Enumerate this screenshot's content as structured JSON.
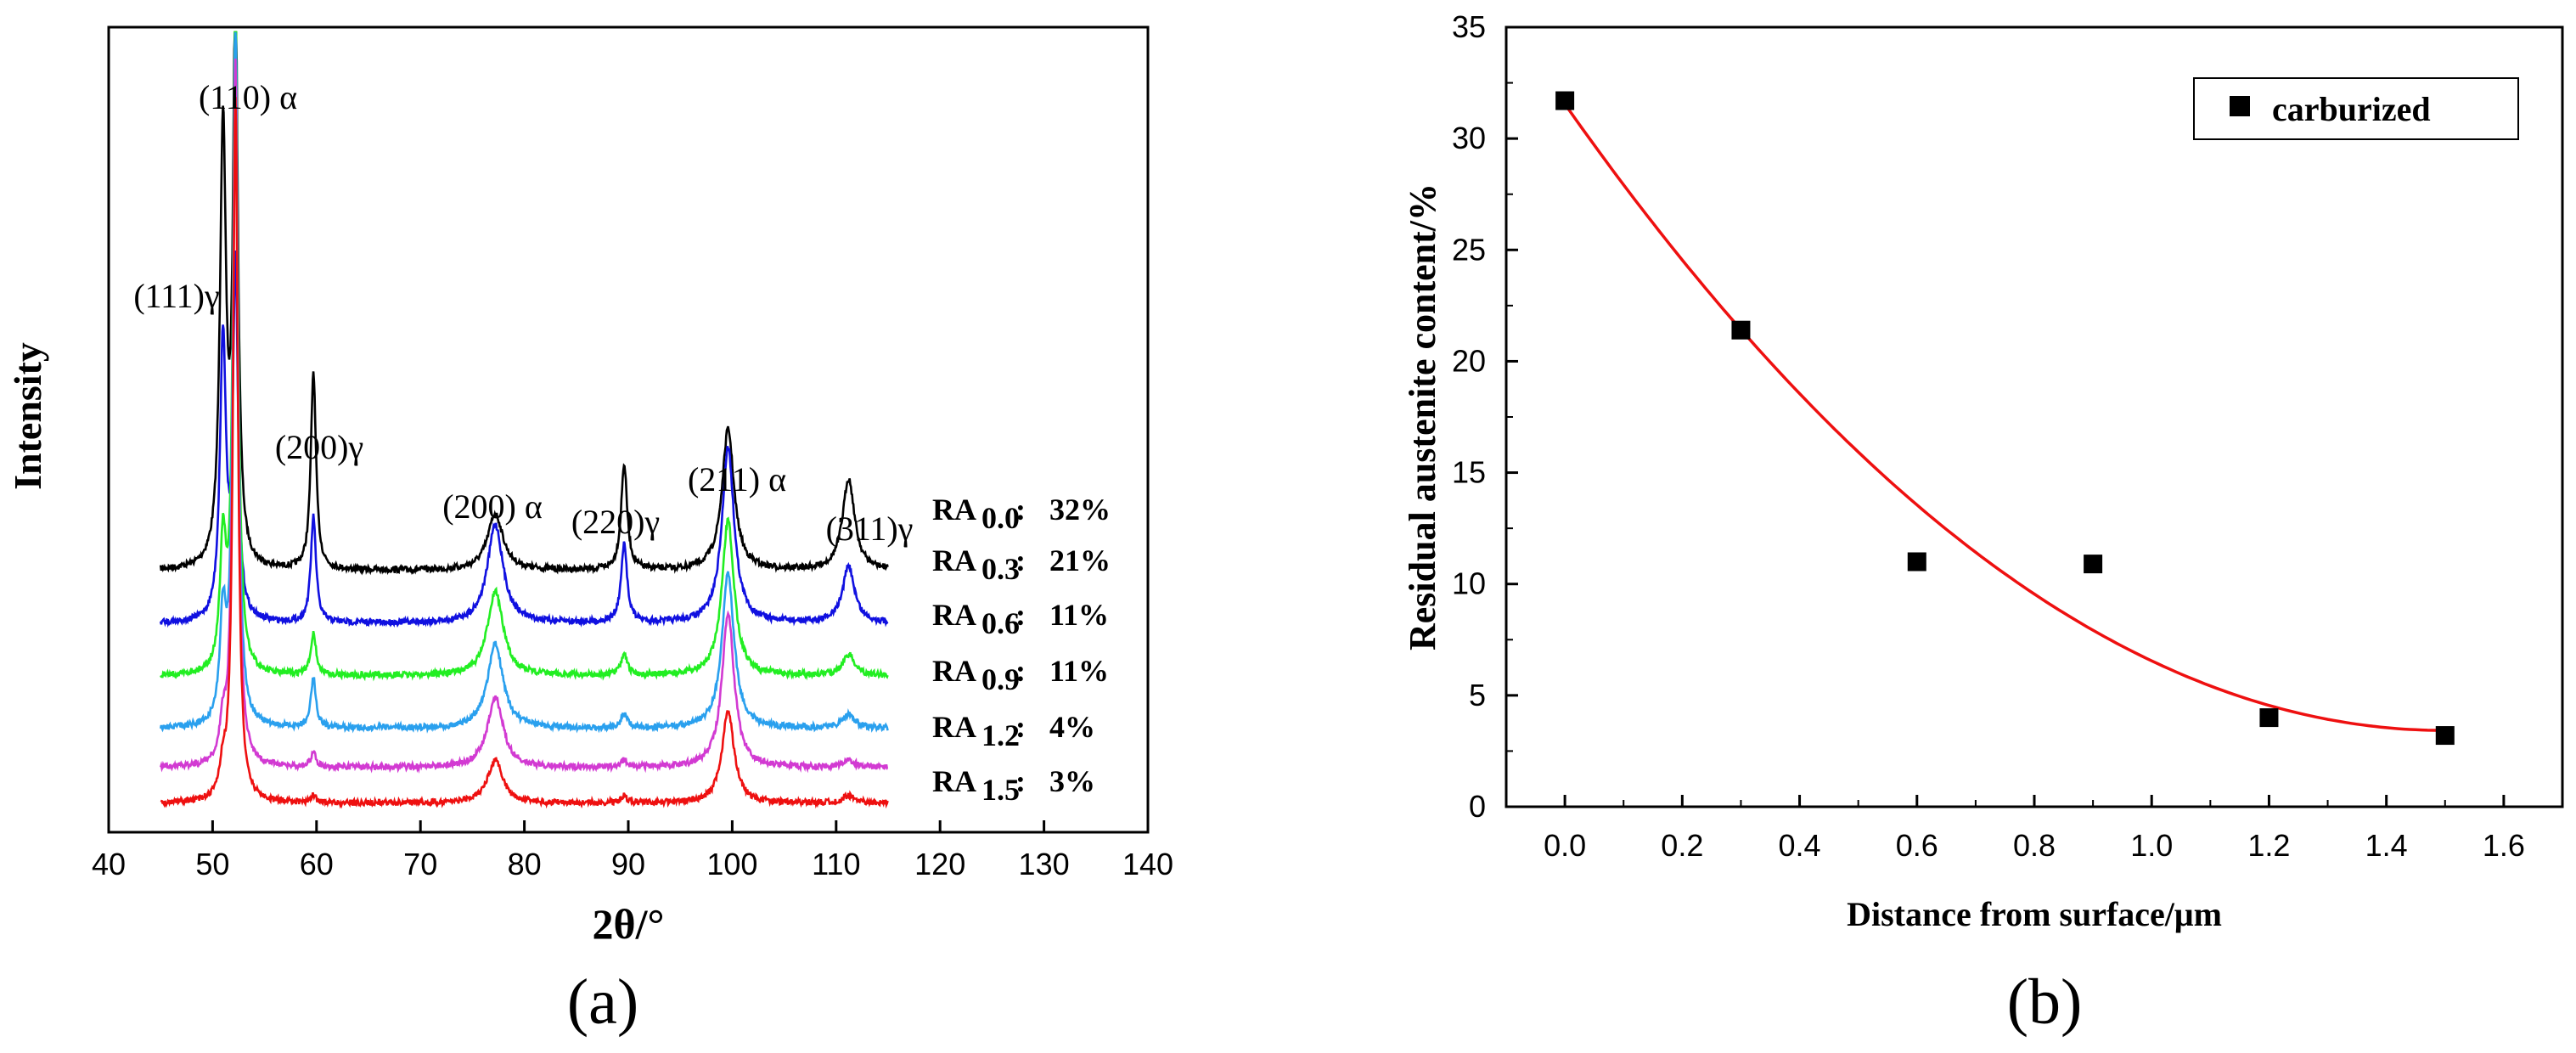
{
  "chart_data": [
    {
      "type": "line",
      "panel_label": "(a)",
      "title": "",
      "xlabel": "2θ/°",
      "ylabel": "Intensity",
      "xlim": [
        40,
        140
      ],
      "xticks": [
        "40",
        "50",
        "60",
        "70",
        "80",
        "90",
        "100",
        "110",
        "120",
        "130",
        "140"
      ],
      "x_range_data": [
        45,
        115
      ],
      "series": [
        {
          "name": "RA0.0",
          "label_main": "RA",
          "label_sub": "0.0",
          "label_value": "32%",
          "color": "#000000",
          "peaks": [
            [
              51.0,
              0.62
            ],
            [
              52.2,
              0.8
            ],
            [
              59.7,
              0.28
            ],
            [
              77.2,
              0.08
            ],
            [
              89.6,
              0.15
            ],
            [
              99.6,
              0.2
            ],
            [
              111.2,
              0.13
            ]
          ]
        },
        {
          "name": "RA0.3",
          "label_main": "RA",
          "label_sub": "0.3",
          "label_value": "21%",
          "color": "#1010e0",
          "peaks": [
            [
              51.0,
              0.4
            ],
            [
              52.2,
              0.5
            ],
            [
              59.7,
              0.15
            ],
            [
              77.2,
              0.14
            ],
            [
              89.6,
              0.11
            ],
            [
              99.6,
              0.25
            ],
            [
              111.2,
              0.08
            ]
          ]
        },
        {
          "name": "RA0.6",
          "label_main": "RA",
          "label_sub": "0.6",
          "label_value": "11%",
          "color": "#22ee22",
          "peaks": [
            [
              51.0,
              0.18
            ],
            [
              52.2,
              0.95
            ],
            [
              59.7,
              0.06
            ],
            [
              77.2,
              0.12
            ],
            [
              89.6,
              0.03
            ],
            [
              99.6,
              0.22
            ],
            [
              111.2,
              0.03
            ]
          ]
        },
        {
          "name": "RA0.9",
          "label_main": "RA",
          "label_sub": "0.9",
          "label_value": "11%",
          "color": "#2aa0ee",
          "peaks": [
            [
              51.0,
              0.15
            ],
            [
              52.2,
              1.0
            ],
            [
              59.7,
              0.07
            ],
            [
              77.2,
              0.12
            ],
            [
              89.6,
              0.02
            ],
            [
              99.6,
              0.22
            ],
            [
              111.2,
              0.02
            ]
          ]
        },
        {
          "name": "RA1.2",
          "label_main": "RA",
          "label_sub": "1.2",
          "label_value": "4%",
          "color": "#d23ad2",
          "peaks": [
            [
              51.0,
              0.05
            ],
            [
              52.2,
              1.0
            ],
            [
              59.7,
              0.02
            ],
            [
              77.2,
              0.1
            ],
            [
              89.6,
              0.01
            ],
            [
              99.6,
              0.22
            ],
            [
              111.2,
              0.01
            ]
          ]
        },
        {
          "name": "RA1.5",
          "label_main": "RA",
          "label_sub": "1.5",
          "label_value": "3%",
          "color": "#ee1010",
          "peaks": [
            [
              51.0,
              0.04
            ],
            [
              52.2,
              1.0
            ],
            [
              59.7,
              0.01
            ],
            [
              77.2,
              0.06
            ],
            [
              89.6,
              0.01
            ],
            [
              99.6,
              0.13
            ],
            [
              111.2,
              0.01
            ]
          ]
        }
      ],
      "annotations": [
        {
          "text": "(110) α",
          "x": 52.2
        },
        {
          "text": "(111)γ",
          "x": 51.0
        },
        {
          "text": "(200)γ",
          "x": 59.7
        },
        {
          "text": "(200) α",
          "x": 77.2
        },
        {
          "text": "(220)γ",
          "x": 89.6
        },
        {
          "text": "(211) α",
          "x": 99.6
        },
        {
          "text": "(311)γ",
          "x": 111.2
        }
      ]
    },
    {
      "type": "scatter",
      "panel_label": "(b)",
      "title": "",
      "xlabel": "Distance from surface/μm",
      "ylabel": "Residual austenite content/%",
      "xlim": [
        -0.1,
        1.7
      ],
      "ylim": [
        0,
        35
      ],
      "xticks": [
        "0.0",
        "0.2",
        "0.4",
        "0.6",
        "0.8",
        "1.0",
        "1.2",
        "1.4",
        "1.6"
      ],
      "yticks": [
        "0",
        "5",
        "10",
        "15",
        "20",
        "25",
        "30",
        "35"
      ],
      "legend": {
        "label": "carburized",
        "position": "top-right"
      },
      "points": [
        [
          0.0,
          31.7
        ],
        [
          0.3,
          21.4
        ],
        [
          0.6,
          11.0
        ],
        [
          0.9,
          10.9
        ],
        [
          1.2,
          4.0
        ],
        [
          1.5,
          3.2
        ]
      ],
      "fit": {
        "type": "quadratic",
        "color": "#ee1010",
        "coefficients": [
          31.55,
          -37.5,
          12.5
        ],
        "x_range": [
          0.0,
          1.5
        ]
      },
      "marker_color": "#000000"
    }
  ]
}
